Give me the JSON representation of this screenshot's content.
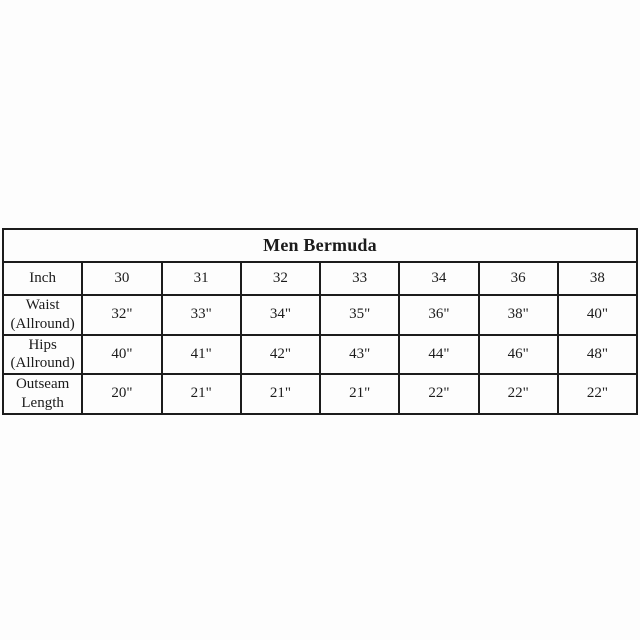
{
  "table": {
    "title": "Men Bermuda",
    "rows": [
      {
        "label": "Inch",
        "values": [
          "30",
          "31",
          "32",
          "33",
          "34",
          "36",
          "38"
        ]
      },
      {
        "label": "Waist (Allround)",
        "values": [
          "32\"",
          "33\"",
          "34\"",
          "35\"",
          "36\"",
          "38\"",
          "40\""
        ]
      },
      {
        "label": "Hips (Allround)",
        "values": [
          "40\"",
          "41\"",
          "42\"",
          "43\"",
          "44\"",
          "46\"",
          "48\""
        ]
      },
      {
        "label": "Outseam Length",
        "values": [
          "20\"",
          "21\"",
          "21\"",
          "21\"",
          "22\"",
          "22\"",
          "22\""
        ]
      }
    ],
    "colors": {
      "border": "#1c1c1c",
      "text": "#1b1b1b",
      "background": "#fdfdfd"
    }
  }
}
